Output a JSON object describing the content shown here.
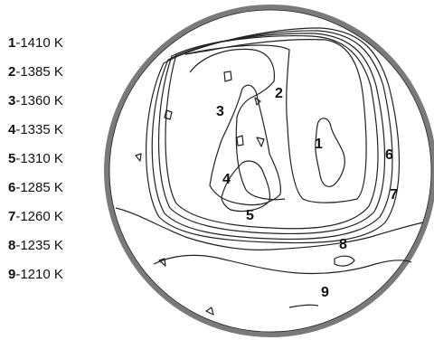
{
  "legend": [
    {
      "num": "1",
      "text": "-1410 K"
    },
    {
      "num": "2",
      "text": "-1385 K"
    },
    {
      "num": "3",
      "text": "-1360 K"
    },
    {
      "num": "4",
      "text": "-1335 K"
    },
    {
      "num": "5",
      "text": "-1310 K"
    },
    {
      "num": "6",
      "text": "-1285 K"
    },
    {
      "num": "7",
      "text": "-1260 K"
    },
    {
      "num": "8",
      "text": "-1235 K"
    },
    {
      "num": "9",
      "text": "-1210 K"
    }
  ],
  "contour_labels": [
    "1",
    "2",
    "3",
    "4",
    "5",
    "6",
    "7",
    "8",
    "9"
  ],
  "colors": {
    "rim": "#7a7a7a",
    "line": "#222222"
  }
}
